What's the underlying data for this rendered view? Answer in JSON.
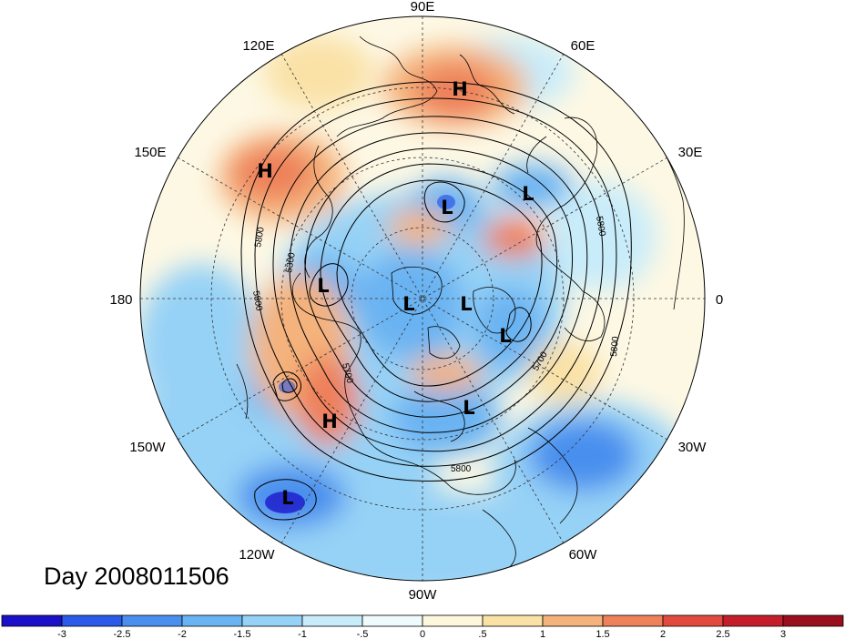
{
  "title": "Day 2008011506",
  "longitude_labels": {
    "top": "90E",
    "top_left": "120E",
    "top_right": "60E",
    "upper_left": "150E",
    "upper_right": "30E",
    "left": "180",
    "right": "0",
    "lower_left": "150W",
    "lower_right": "30W",
    "bottom_left": "120W",
    "bottom_right": "60W",
    "bottom": "90W"
  },
  "centers": [
    {
      "name": "high-ne-siberia",
      "label": "H"
    },
    {
      "name": "high-east-asia",
      "label": "H"
    },
    {
      "name": "high-west-na",
      "label": "H"
    },
    {
      "name": "low-central-asia",
      "label": "L"
    },
    {
      "name": "low-europe",
      "label": "L"
    },
    {
      "name": "low-bering",
      "label": "L"
    },
    {
      "name": "low-arctic-west",
      "label": "L"
    },
    {
      "name": "low-arctic-east",
      "label": "L"
    },
    {
      "name": "low-greenland",
      "label": "L"
    },
    {
      "name": "low-hudson",
      "label": "L"
    },
    {
      "name": "low-pacific",
      "label": "L"
    }
  ],
  "contour_labels": [
    "5800",
    "5300",
    "5800",
    "5700",
    "5800",
    "5800",
    "5700",
    "5800"
  ],
  "colorbar": {
    "labels": [
      "-3",
      "-2.5",
      "-2",
      "-1.5",
      "-1",
      "-.5",
      "0",
      ".5",
      "1",
      "1.5",
      "2",
      "2.5",
      "3"
    ],
    "colors": [
      "#1a10c8",
      "#2a5ae8",
      "#4a8fee",
      "#6ab3f2",
      "#96d2f6",
      "#c8ecfa",
      "#eefafc",
      "#fdf7dc",
      "#fae1a6",
      "#f4b27c",
      "#ee805a",
      "#e24a40",
      "#c41e2a",
      "#9a0f1e"
    ]
  }
}
